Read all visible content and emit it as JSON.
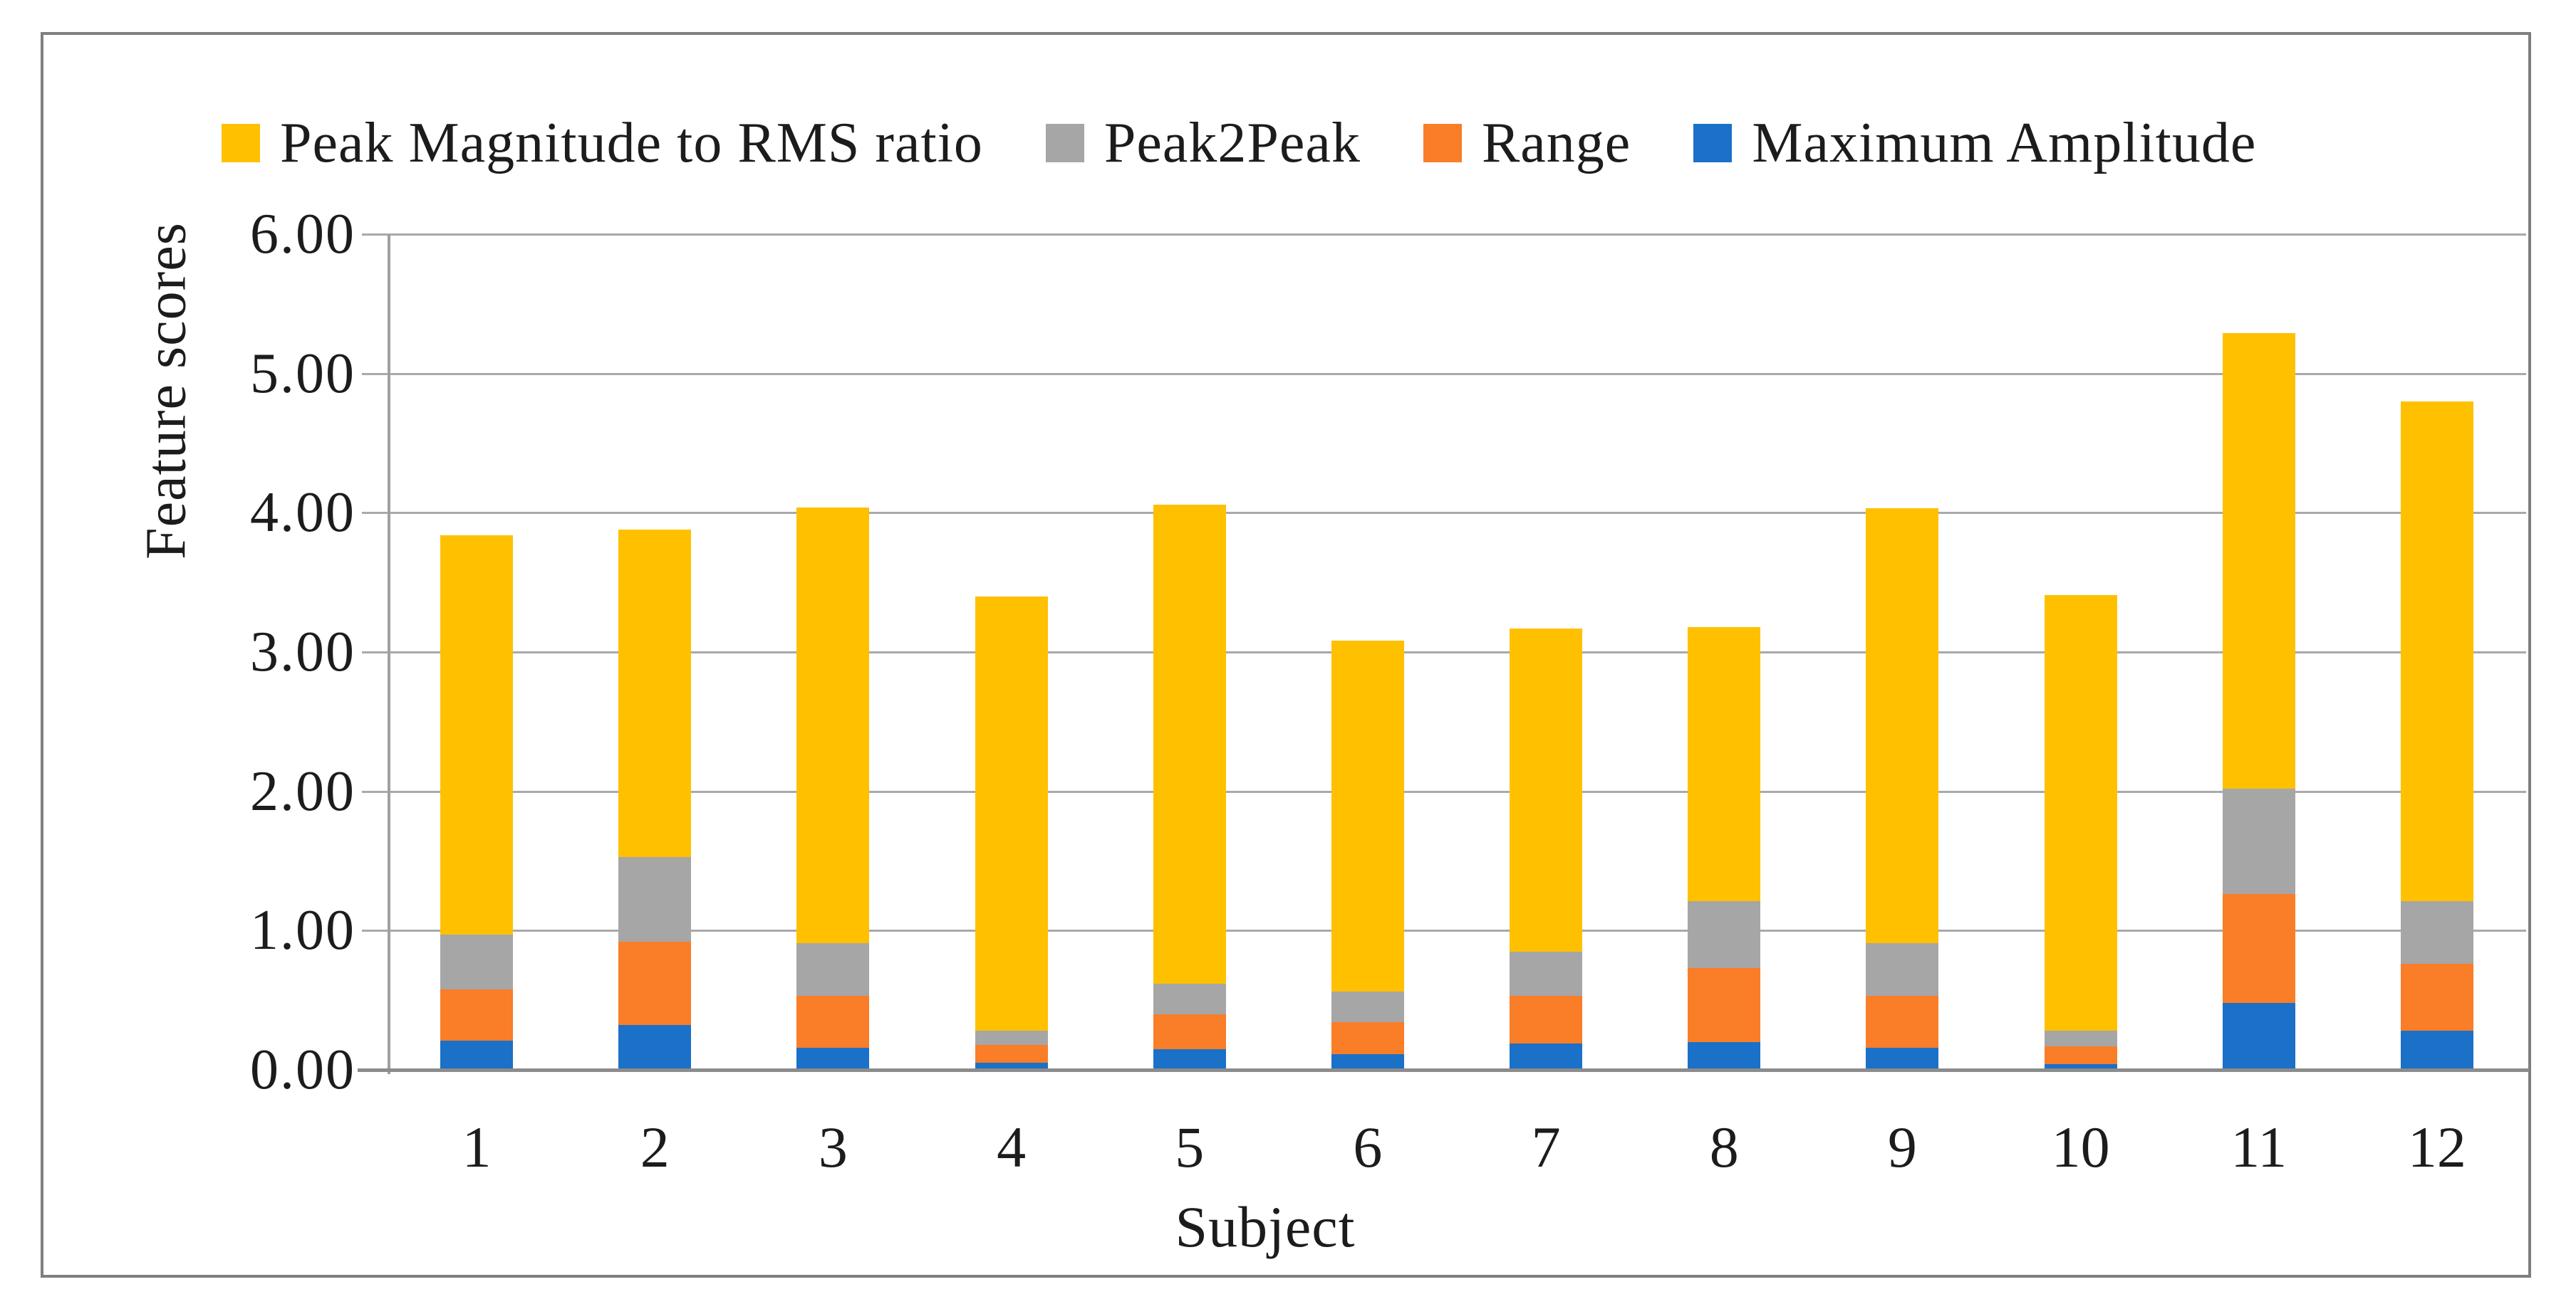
{
  "legend": {
    "items": [
      {
        "label": "Peak Magnitude to RMS ratio",
        "color": "#FFC000",
        "icon": "legend-swatch-yellow"
      },
      {
        "label": "Peak2Peak",
        "color": "#A6A6A6",
        "icon": "legend-swatch-gray"
      },
      {
        "label": "Range",
        "color": "#FA7D28",
        "icon": "legend-swatch-orange"
      },
      {
        "label": "Maximum Amplitude",
        "color": "#1B70C7",
        "icon": "legend-swatch-blue"
      }
    ]
  },
  "axes": {
    "y_title": "Feature scores",
    "x_title": "Subject",
    "y_tick_labels": [
      "6.00",
      "5.00",
      "4.00",
      "3.00",
      "2.00",
      "1.00",
      "0.00"
    ],
    "x_tick_labels": [
      "1",
      "2",
      "3",
      "4",
      "5",
      "6",
      "7",
      "8",
      "9",
      "10",
      "11",
      "12"
    ]
  },
  "colors": {
    "grid": "#A9A9A9",
    "axis": "#8C8C8C",
    "frame": "#7F7F7F",
    "text": "#1C1C1C"
  },
  "chart_data": {
    "type": "bar",
    "stacked": true,
    "title": "",
    "xlabel": "Subject",
    "ylabel": "Feature scores",
    "ylim": [
      0,
      6
    ],
    "y_tick_step": 1,
    "grid": true,
    "legend_position": "top",
    "categories": [
      "1",
      "2",
      "3",
      "4",
      "5",
      "6",
      "7",
      "8",
      "9",
      "10",
      "11",
      "12"
    ],
    "series": [
      {
        "name": "Maximum Amplitude",
        "color": "#1B70C7",
        "values": [
          0.21,
          0.32,
          0.16,
          0.05,
          0.15,
          0.11,
          0.19,
          0.2,
          0.16,
          0.04,
          0.48,
          0.28
        ]
      },
      {
        "name": "Range",
        "color": "#FA7D28",
        "values": [
          0.37,
          0.6,
          0.37,
          0.13,
          0.25,
          0.23,
          0.34,
          0.53,
          0.37,
          0.13,
          0.78,
          0.48
        ]
      },
      {
        "name": "Peak2Peak",
        "color": "#A6A6A6",
        "values": [
          0.39,
          0.61,
          0.38,
          0.1,
          0.22,
          0.22,
          0.32,
          0.48,
          0.38,
          0.11,
          0.76,
          0.45
        ]
      },
      {
        "name": "Peak Magnitude to RMS ratio",
        "color": "#FFC000",
        "values": [
          2.87,
          2.35,
          3.13,
          3.12,
          3.44,
          2.52,
          2.32,
          1.97,
          3.12,
          3.13,
          3.27,
          3.59
        ]
      }
    ],
    "stack_totals": [
      3.84,
      3.88,
      4.04,
      3.4,
      4.06,
      3.08,
      3.17,
      3.18,
      4.03,
      3.41,
      5.29,
      4.8
    ]
  }
}
